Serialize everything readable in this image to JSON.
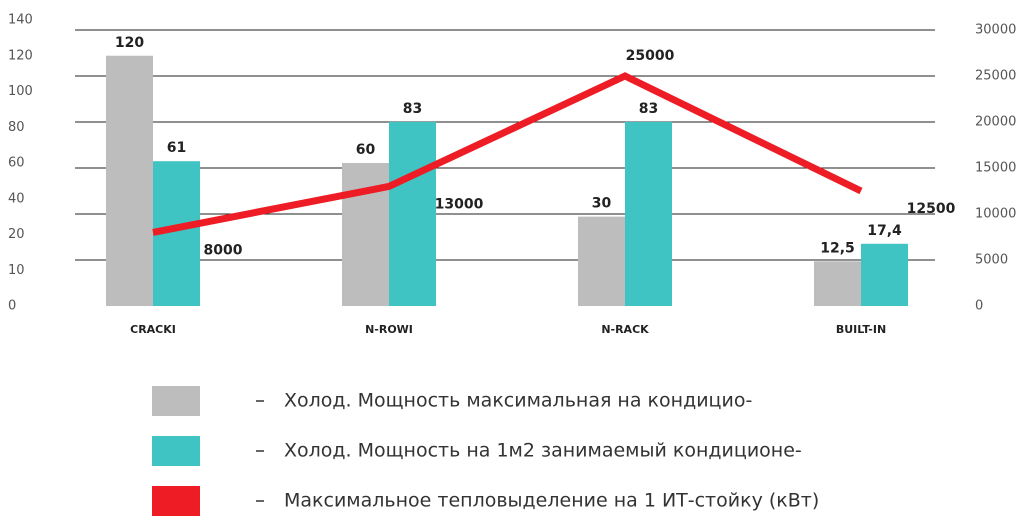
{
  "chart_data": {
    "type": "bar_line",
    "categories": [
      "CRACKI",
      "N-ROWI",
      "N-RACK",
      "BUILT-IN"
    ],
    "yticks": [
      0,
      10,
      20,
      40,
      60,
      80,
      100,
      120,
      140
    ],
    "y2lim": [
      0,
      30000
    ],
    "y2ticks": [
      0,
      5000,
      10000,
      15000,
      20000,
      25000,
      30000
    ],
    "grid": true,
    "series": [
      {
        "name": "Холод. Мощность максимальная на кондицио-",
        "type": "bar",
        "color": "#bdbdbd",
        "values": [
          120,
          60,
          30,
          12.5
        ],
        "value_labels": [
          "120",
          "60",
          "30",
          "12,5"
        ]
      },
      {
        "name": "Холод. Мощность на 1м2 занимаемый  кондиционе-",
        "type": "bar",
        "color": "#3fc3c3",
        "values": [
          61,
          83,
          83,
          17.4
        ],
        "value_labels": [
          "61",
          "83",
          "83",
          "17,4"
        ]
      },
      {
        "name": "Максимальное тепловыделение на 1 ИТ-стойку (кВт)",
        "type": "line",
        "axis": "y2",
        "color": "#ee1c25",
        "values": [
          8000,
          13000,
          25000,
          12500
        ]
      }
    ]
  }
}
